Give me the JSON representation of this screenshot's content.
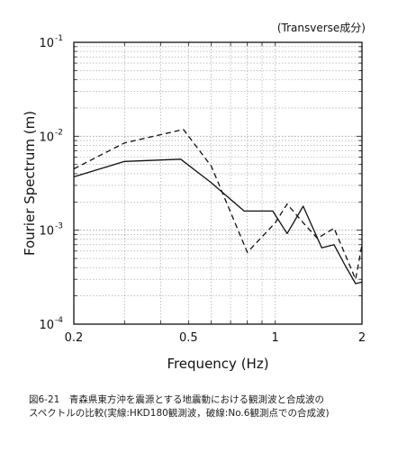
{
  "figure": {
    "component_label": "(Transverse成分)",
    "caption_line1": "図6-21　青森県東方沖を震源とする地震動における観測波と合成波の",
    "caption_line2": "スペクトルの比較(実線:HKD180観測波，破線:No.6観測点での合成波)"
  },
  "chart_data": {
    "type": "line",
    "xlabel": "Frequency (Hz)",
    "ylabel": "Fourier Spectrum (m)",
    "xscale": "log",
    "yscale": "log",
    "xlim": [
      0.2,
      2
    ],
    "ylim": [
      0.0001,
      0.1
    ],
    "grid": true,
    "x_ticks": [
      {
        "value": 0.2,
        "label": "0.2"
      },
      {
        "value": 0.5,
        "label": "0.5"
      },
      {
        "value": 1,
        "label": "1"
      },
      {
        "value": 2,
        "label": "2"
      }
    ],
    "y_ticks": [
      {
        "value": 0.0001,
        "base": "10",
        "exp": "-4"
      },
      {
        "value": 0.001,
        "base": "10",
        "exp": "-3"
      },
      {
        "value": 0.01,
        "base": "10",
        "exp": "-2"
      },
      {
        "value": 0.1,
        "base": "10",
        "exp": "-1"
      }
    ],
    "series": [
      {
        "style": "solid",
        "points": [
          [
            0.2,
            0.0037
          ],
          [
            0.3,
            0.0054
          ],
          [
            0.47,
            0.0057
          ],
          [
            0.6,
            0.0032
          ],
          [
            0.78,
            0.0016
          ],
          [
            0.98,
            0.0016
          ],
          [
            1.1,
            0.00092
          ],
          [
            1.25,
            0.0018
          ],
          [
            1.45,
            0.00065
          ],
          [
            1.6,
            0.0007
          ],
          [
            1.75,
            0.00042
          ],
          [
            1.9,
            0.00027
          ],
          [
            2.0,
            0.00028
          ]
        ]
      },
      {
        "style": "dashed",
        "points": [
          [
            0.2,
            0.0045
          ],
          [
            0.3,
            0.0085
          ],
          [
            0.48,
            0.0118
          ],
          [
            0.6,
            0.0048
          ],
          [
            0.8,
            0.00058
          ],
          [
            1.0,
            0.0012
          ],
          [
            1.1,
            0.0019
          ],
          [
            1.25,
            0.0012
          ],
          [
            1.4,
            0.00082
          ],
          [
            1.6,
            0.00105
          ],
          [
            1.75,
            0.00055
          ],
          [
            1.9,
            0.0003
          ],
          [
            2.0,
            0.0007
          ]
        ]
      }
    ]
  }
}
